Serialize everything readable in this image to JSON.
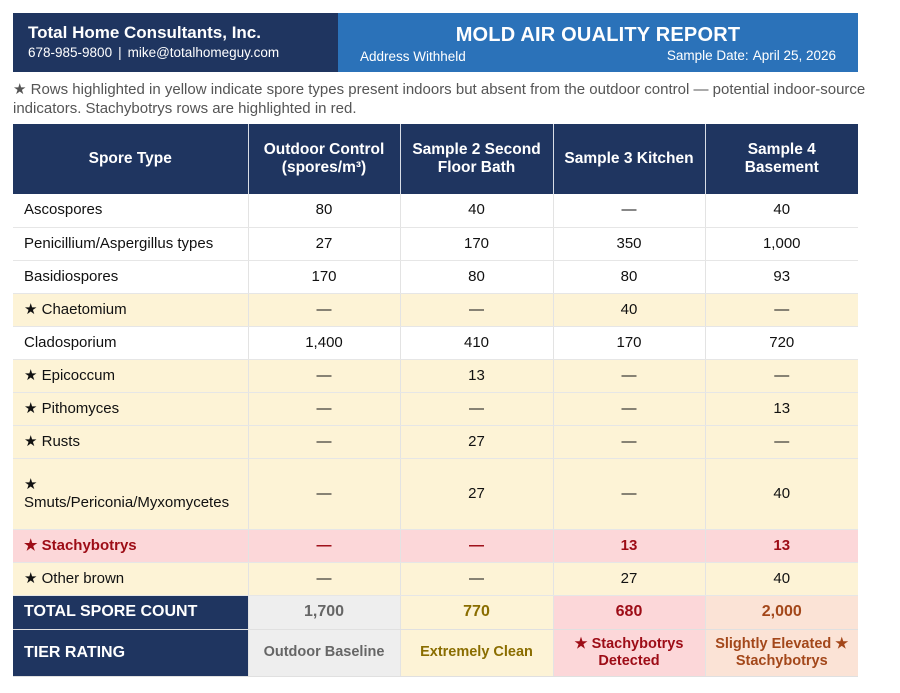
{
  "header": {
    "company": "Total Home Consultants, Inc.",
    "phone": "678-985-9800",
    "separator": "|",
    "email": "mike@totalhomeguy.com",
    "report_title": "MOLD AIR OUALITY REPORT",
    "address": "Address Withheld",
    "sample_date_label": "Sample Date:",
    "sample_date": "April 25, 2026"
  },
  "note": "★ Rows highlighted in yellow indicate spore types present indoors but absent from the outdoor control — potential indoor-source indicators. Stachybotrys rows are highlighted in red.",
  "table": {
    "columns": [
      "Spore Type",
      "Outdoor Control (spores/m³)",
      "Sample 2 Second Floor Bath",
      "Sample 3 Kitchen",
      "Sample 4 Basement"
    ],
    "rows": [
      {
        "name": "Ascospores",
        "values": [
          "80",
          "40",
          "—",
          "40"
        ]
      },
      {
        "name": "Penicillium/Aspergillus types",
        "values": [
          "27",
          "170",
          "350",
          "1,000"
        ]
      },
      {
        "name": "Basidiospores",
        "values": [
          "170",
          "80",
          "80",
          "93"
        ]
      },
      {
        "name": "★ Chaetomium",
        "values": [
          "—",
          "—",
          "40",
          "—"
        ]
      },
      {
        "name": "Cladosporium",
        "values": [
          "1,400",
          "410",
          "170",
          "720"
        ]
      },
      {
        "name": "★ Epicoccum",
        "values": [
          "—",
          "13",
          "—",
          "—"
        ]
      },
      {
        "name": "★ Pithomyces",
        "values": [
          "—",
          "—",
          "—",
          "13"
        ]
      },
      {
        "name": "★ Rusts",
        "values": [
          "—",
          "27",
          "—",
          "—"
        ]
      },
      {
        "name": "★ Smuts/Periconia/Myxomycetes",
        "values": [
          "—",
          "27",
          "—",
          "40"
        ]
      },
      {
        "name": "★ Stachybotrys",
        "values": [
          "—",
          "—",
          "13",
          "13"
        ]
      },
      {
        "name": "★ Other brown",
        "values": [
          "—",
          "—",
          "27",
          "40"
        ]
      }
    ],
    "total": {
      "label": "TOTAL SPORE COUNT",
      "values": [
        "1,700",
        "770",
        "680",
        "2,000"
      ]
    },
    "tier": {
      "label": "TIER RATING",
      "values": [
        "Outdoor Baseline",
        "Extremely Clean",
        "★ Stachybotrys Detected",
        "Slightly Elevated ★ Stachybotrys"
      ]
    }
  },
  "colors": {
    "navy": "#1f3560",
    "blue": "#2b72b9",
    "highlight_yellow": "#fdf3d6",
    "highlight_red": "#fcd7d9"
  }
}
